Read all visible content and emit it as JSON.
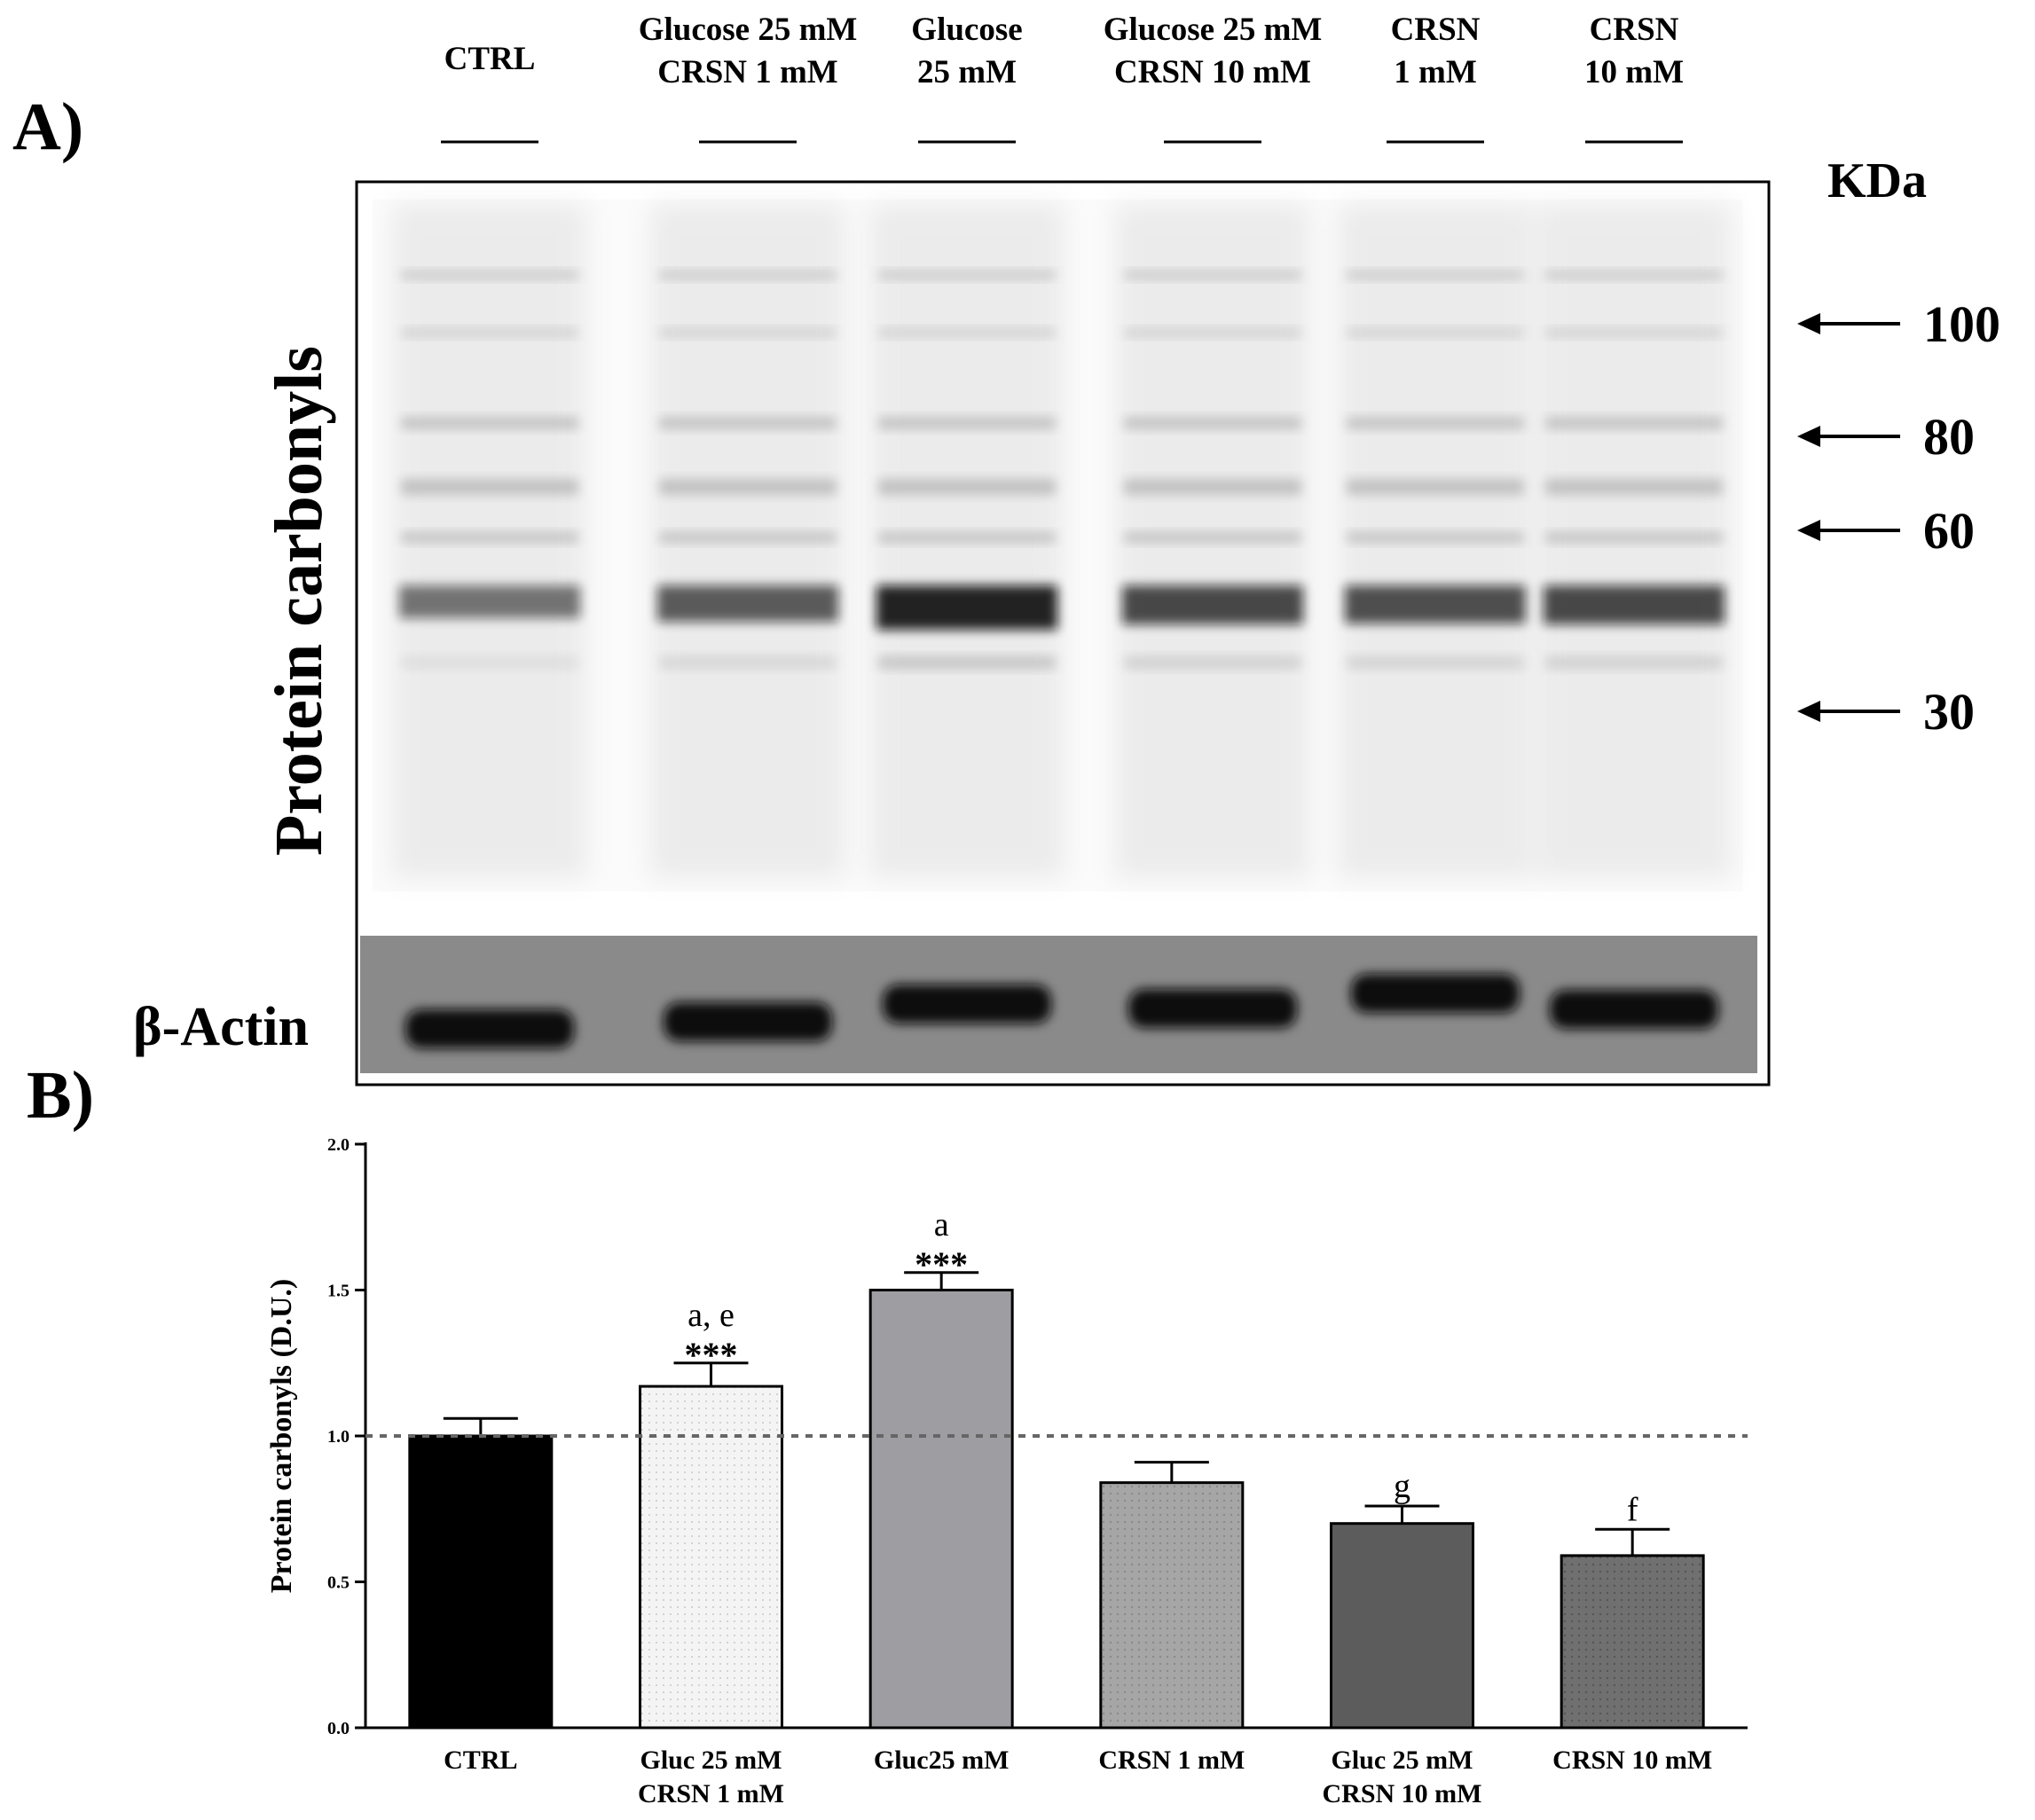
{
  "panel_a": {
    "letter": "A)",
    "lane_labels": [
      [
        "CTRL"
      ],
      [
        "Glucose 25 mM",
        "CRSN 1 mM"
      ],
      [
        "Glucose",
        "25 mM"
      ],
      [
        "Glucose 25 mM",
        "CRSN 10 mM"
      ],
      [
        "CRSN",
        "1 mM"
      ],
      [
        "CRSN",
        "10 mM"
      ]
    ],
    "kda_label": "KDa",
    "markers": [
      "100",
      "80",
      "60",
      "30"
    ],
    "blot_label": "Protein carbonyls",
    "actin_label": "β-Actin",
    "colors": {
      "blot_bg": "#fbfbfb",
      "actin_bg": "#8a8a8a",
      "band": "#111111"
    }
  },
  "panel_b": {
    "letter": "B)"
  },
  "chart_data": {
    "type": "bar",
    "categories": [
      [
        "CTRL"
      ],
      [
        "Gluc 25 mM",
        "CRSN 1 mM"
      ],
      [
        "Gluc25 mM"
      ],
      [
        "CRSN 1 mM"
      ],
      [
        "Gluc 25 mM",
        "CRSN 10 mM"
      ],
      [
        "CRSN 10 mM"
      ]
    ],
    "values": [
      1.0,
      1.17,
      1.5,
      0.84,
      0.7,
      0.59
    ],
    "errors": [
      0.06,
      0.08,
      0.06,
      0.07,
      0.06,
      0.09
    ],
    "stars": [
      "",
      "***",
      "***",
      "",
      "",
      ""
    ],
    "letters": [
      "",
      "a, e",
      "a",
      "",
      "g",
      "f"
    ],
    "fill_colors": [
      "#000000",
      "#f2f2f2",
      "#9d9da2",
      "#a3a3a3",
      "#5c5c5c",
      "#6e6e6e"
    ],
    "ylabel": "Protein carbonyls (D.U.)",
    "ylim": [
      0,
      2.0
    ],
    "yticks": [
      "0.0",
      "0.5",
      "1.0",
      "1.5",
      "2.0"
    ],
    "reference_line": 1.0
  }
}
